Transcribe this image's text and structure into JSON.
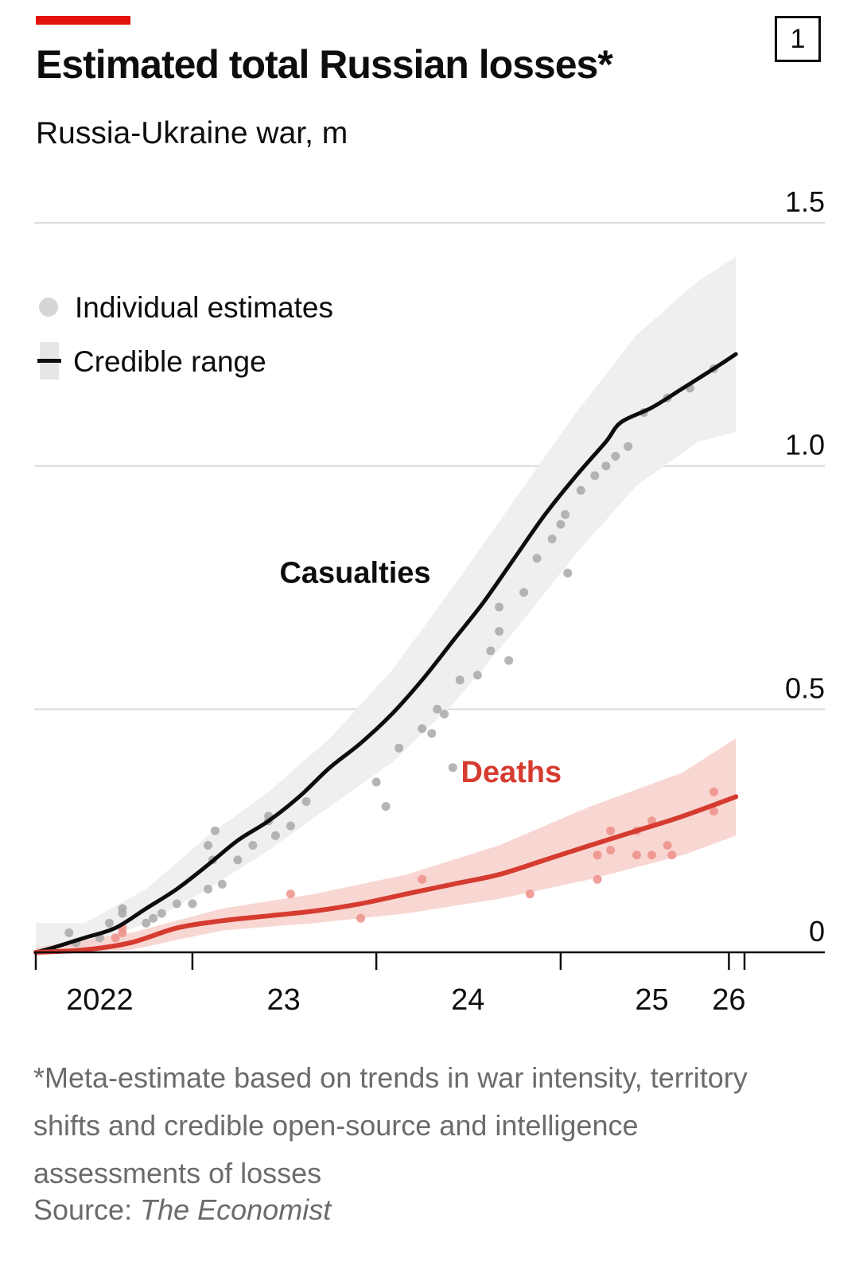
{
  "header": {
    "title": "Estimated total Russian losses*",
    "subtitle": "Russia-Ukraine war, m",
    "chart_number": "1"
  },
  "footnote": {
    "text": "*Meta-estimate based on trends in war intensity, territory shifts and credible open-source and intelligence assessments of losses",
    "source_label": "Source:",
    "source_name": "The Economist"
  },
  "colors": {
    "accent": "#e3120b",
    "casualties_line": "#0d0d0d",
    "casualties_band": "#efefef",
    "casualties_dots": "#a8a8a8",
    "deaths_line": "#d63b2f",
    "deaths_band": "#f6c9c4",
    "deaths_dots": "#ee8f88",
    "grid": "#d9d9d9",
    "text_muted": "#6b6b6b"
  },
  "chart_data": {
    "type": "line",
    "title": "Estimated total Russian losses*",
    "subtitle": "Russia-Ukraine war, m",
    "y_unit": "m",
    "ylim": [
      0,
      1.5
    ],
    "y_ticks": [
      {
        "value": 0,
        "label": "0"
      },
      {
        "value": 0.5,
        "label": "0.5"
      },
      {
        "value": 1.0,
        "label": "1.0"
      },
      {
        "value": 1.5,
        "label": "1.5"
      }
    ],
    "xlim": [
      "2022-02-24",
      "2026-01-01"
    ],
    "x_ticks": [
      "2022-02-24",
      "2023-01-01",
      "2024-01-01",
      "2025-01-01",
      "2025-12-01",
      "2026-01-01"
    ],
    "x_tick_labels": [
      {
        "date": "2022-07-01",
        "label": "2022"
      },
      {
        "date": "2023-07-01",
        "label": "23"
      },
      {
        "date": "2024-07-01",
        "label": "24"
      },
      {
        "date": "2025-07-01",
        "label": "25"
      },
      {
        "date": "2025-12-01",
        "label": "26"
      }
    ],
    "grid": true,
    "legend": {
      "position": "top-left",
      "items": [
        {
          "marker": "dot",
          "label": "Individual estimates"
        },
        {
          "marker": "line-band",
          "label": "Credible range"
        }
      ]
    },
    "series": [
      {
        "name": "Casualties",
        "color": "#0d0d0d",
        "points": [
          [
            "2022-02-24",
            0.0
          ],
          [
            "2022-04-01",
            0.01
          ],
          [
            "2022-06-01",
            0.03
          ],
          [
            "2022-08-01",
            0.05
          ],
          [
            "2022-10-01",
            0.09
          ],
          [
            "2022-12-01",
            0.13
          ],
          [
            "2023-02-01",
            0.18
          ],
          [
            "2023-04-01",
            0.23
          ],
          [
            "2023-06-01",
            0.27
          ],
          [
            "2023-08-01",
            0.32
          ],
          [
            "2023-10-01",
            0.38
          ],
          [
            "2023-12-01",
            0.43
          ],
          [
            "2024-02-01",
            0.49
          ],
          [
            "2024-04-01",
            0.56
          ],
          [
            "2024-06-01",
            0.64
          ],
          [
            "2024-08-01",
            0.72
          ],
          [
            "2024-10-01",
            0.81
          ],
          [
            "2024-12-01",
            0.9
          ],
          [
            "2025-02-01",
            0.98
          ],
          [
            "2025-04-01",
            1.05
          ],
          [
            "2025-05-01",
            1.09
          ],
          [
            "2025-07-01",
            1.12
          ],
          [
            "2025-09-01",
            1.16
          ],
          [
            "2025-11-01",
            1.2
          ],
          [
            "2025-12-15",
            1.23
          ]
        ],
        "band": [
          [
            "2022-02-24",
            0.0,
            0.06
          ],
          [
            "2022-06-01",
            0.01,
            0.06
          ],
          [
            "2022-10-01",
            0.06,
            0.13
          ],
          [
            "2023-02-01",
            0.13,
            0.24
          ],
          [
            "2023-06-01",
            0.21,
            0.33
          ],
          [
            "2023-10-01",
            0.3,
            0.44
          ],
          [
            "2024-02-01",
            0.39,
            0.58
          ],
          [
            "2024-06-01",
            0.51,
            0.75
          ],
          [
            "2024-10-01",
            0.66,
            0.93
          ],
          [
            "2025-02-01",
            0.82,
            1.11
          ],
          [
            "2025-06-01",
            0.96,
            1.27
          ],
          [
            "2025-10-01",
            1.05,
            1.38
          ],
          [
            "2025-12-15",
            1.07,
            1.43
          ]
        ],
        "estimates": [
          [
            "2022-05-01",
            0.04
          ],
          [
            "2022-05-15",
            0.02
          ],
          [
            "2022-07-01",
            0.03
          ],
          [
            "2022-07-20",
            0.06
          ],
          [
            "2022-08-15",
            0.09
          ],
          [
            "2022-08-15",
            0.08
          ],
          [
            "2022-10-01",
            0.06
          ],
          [
            "2022-10-15",
            0.07
          ],
          [
            "2022-11-01",
            0.08
          ],
          [
            "2022-12-01",
            0.1
          ],
          [
            "2023-01-01",
            0.1
          ],
          [
            "2023-02-01",
            0.13
          ],
          [
            "2023-02-01",
            0.22
          ],
          [
            "2023-02-10",
            0.19
          ],
          [
            "2023-02-15",
            0.25
          ],
          [
            "2023-03-01",
            0.14
          ],
          [
            "2023-04-01",
            0.19
          ],
          [
            "2023-05-01",
            0.22
          ],
          [
            "2023-06-01",
            0.27
          ],
          [
            "2023-06-01",
            0.28
          ],
          [
            "2023-06-15",
            0.24
          ],
          [
            "2023-07-15",
            0.26
          ],
          [
            "2023-08-15",
            0.31
          ],
          [
            "2024-01-01",
            0.35
          ],
          [
            "2024-01-20",
            0.3
          ],
          [
            "2024-02-15",
            0.42
          ],
          [
            "2024-04-01",
            0.46
          ],
          [
            "2024-04-20",
            0.45
          ],
          [
            "2024-05-01",
            0.5
          ],
          [
            "2024-05-15",
            0.49
          ],
          [
            "2024-06-01",
            0.38
          ],
          [
            "2024-06-15",
            0.56
          ],
          [
            "2024-07-20",
            0.57
          ],
          [
            "2024-08-15",
            0.62
          ],
          [
            "2024-09-01",
            0.66
          ],
          [
            "2024-09-01",
            0.71
          ],
          [
            "2024-09-20",
            0.6
          ],
          [
            "2024-10-20",
            0.74
          ],
          [
            "2024-11-15",
            0.81
          ],
          [
            "2024-12-15",
            0.85
          ],
          [
            "2025-01-01",
            0.88
          ],
          [
            "2025-01-10",
            0.9
          ],
          [
            "2025-01-15",
            0.78
          ],
          [
            "2025-02-10",
            0.95
          ],
          [
            "2025-03-10",
            0.98
          ],
          [
            "2025-04-01",
            1.0
          ],
          [
            "2025-04-20",
            1.02
          ],
          [
            "2025-05-15",
            1.04
          ],
          [
            "2025-06-15",
            1.11
          ],
          [
            "2025-08-01",
            1.14
          ],
          [
            "2025-09-15",
            1.16
          ],
          [
            "2025-11-01",
            1.2
          ]
        ]
      },
      {
        "name": "Deaths",
        "color": "#d63b2f",
        "points": [
          [
            "2022-02-24",
            0.0
          ],
          [
            "2022-06-01",
            0.005
          ],
          [
            "2022-09-01",
            0.02
          ],
          [
            "2022-12-01",
            0.05
          ],
          [
            "2023-03-01",
            0.065
          ],
          [
            "2023-06-01",
            0.075
          ],
          [
            "2023-09-01",
            0.085
          ],
          [
            "2023-12-01",
            0.1
          ],
          [
            "2024-03-01",
            0.12
          ],
          [
            "2024-06-01",
            0.14
          ],
          [
            "2024-09-01",
            0.16
          ],
          [
            "2024-12-01",
            0.19
          ],
          [
            "2025-03-01",
            0.22
          ],
          [
            "2025-06-01",
            0.25
          ],
          [
            "2025-09-01",
            0.28
          ],
          [
            "2025-12-15",
            0.32
          ]
        ],
        "band": [
          [
            "2022-02-24",
            0.0,
            0.01
          ],
          [
            "2022-09-01",
            0.005,
            0.04
          ],
          [
            "2023-03-01",
            0.045,
            0.09
          ],
          [
            "2023-09-01",
            0.06,
            0.12
          ],
          [
            "2024-03-01",
            0.08,
            0.16
          ],
          [
            "2024-09-01",
            0.11,
            0.22
          ],
          [
            "2025-03-01",
            0.15,
            0.3
          ],
          [
            "2025-09-01",
            0.2,
            0.37
          ],
          [
            "2025-12-15",
            0.24,
            0.44
          ]
        ],
        "estimates": [
          [
            "2022-08-15",
            0.04
          ],
          [
            "2022-08-15",
            0.05
          ],
          [
            "2022-08-01",
            0.03
          ],
          [
            "2023-07-15",
            0.12
          ],
          [
            "2023-12-01",
            0.07
          ],
          [
            "2024-04-01",
            0.15
          ],
          [
            "2024-11-01",
            0.12
          ],
          [
            "2025-03-15",
            0.15
          ],
          [
            "2025-03-15",
            0.2
          ],
          [
            "2025-04-10",
            0.25
          ],
          [
            "2025-04-10",
            0.21
          ],
          [
            "2025-06-01",
            0.25
          ],
          [
            "2025-06-01",
            0.2
          ],
          [
            "2025-07-01",
            0.27
          ],
          [
            "2025-07-01",
            0.2
          ],
          [
            "2025-08-01",
            0.22
          ],
          [
            "2025-08-10",
            0.2
          ],
          [
            "2025-11-01",
            0.29
          ],
          [
            "2025-11-01",
            0.33
          ]
        ]
      }
    ]
  }
}
